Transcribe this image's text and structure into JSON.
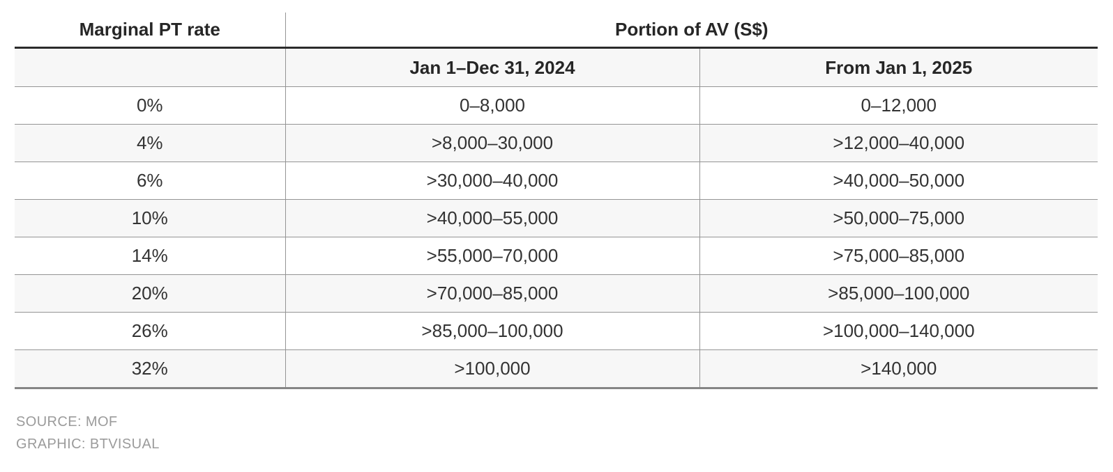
{
  "chart_data": {
    "type": "table",
    "header": {
      "rate_label": "Marginal PT rate",
      "group_label": "Portion of AV (S$)",
      "period_2024": "Jan 1–Dec 31, 2024",
      "period_2025": "From Jan 1, 2025"
    },
    "rows": [
      {
        "rate": "0%",
        "av_2024": "0–8,000",
        "av_2025": "0–12,000"
      },
      {
        "rate": "4%",
        "av_2024": ">8,000–30,000",
        "av_2025": ">12,000–40,000"
      },
      {
        "rate": "6%",
        "av_2024": ">30,000–40,000",
        "av_2025": ">40,000–50,000"
      },
      {
        "rate": "10%",
        "av_2024": ">40,000–55,000",
        "av_2025": ">50,000–75,000"
      },
      {
        "rate": "14%",
        "av_2024": ">55,000–70,000",
        "av_2025": ">75,000–85,000"
      },
      {
        "rate": "20%",
        "av_2024": ">70,000–85,000",
        "av_2025": ">85,000–100,000"
      },
      {
        "rate": "26%",
        "av_2024": ">85,000–100,000",
        "av_2025": ">100,000–140,000"
      },
      {
        "rate": "32%",
        "av_2024": ">100,000",
        "av_2025": ">140,000"
      }
    ]
  },
  "footer": {
    "source": "SOURCE: MOF",
    "graphic": "GRAPHIC: BTVISUAL"
  },
  "colors": {
    "header_rule": "#2b2b2b",
    "row_rule": "#949494",
    "bottom_rule": "#858585",
    "zebra_bg": "#f7f7f7",
    "header_text": "#262626",
    "body_text": "#333333",
    "footer_text": "#9b9b9b"
  }
}
